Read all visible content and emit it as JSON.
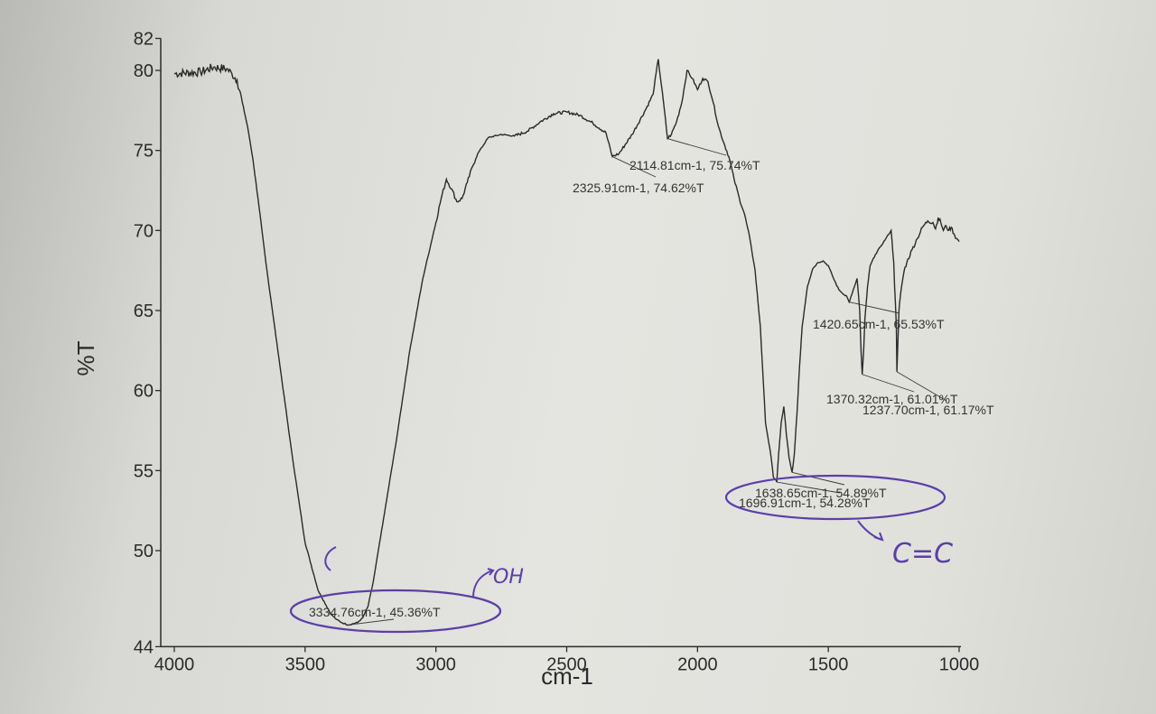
{
  "chart_data": {
    "type": "line",
    "xlabel": "cm-1",
    "ylabel": "%T",
    "xlim": [
      4000,
      1000
    ],
    "ylim": [
      44,
      82
    ],
    "x_ticks": [
      {
        "value": 4000,
        "label": "4000"
      },
      {
        "value": 3500,
        "label": "3500"
      },
      {
        "value": 3000,
        "label": "3000"
      },
      {
        "value": 2500,
        "label": "2500"
      },
      {
        "value": 2000,
        "label": "2000"
      },
      {
        "value": 1500,
        "label": "1500"
      },
      {
        "value": 1000,
        "label": "1000"
      }
    ],
    "y_ticks": [
      {
        "value": 44,
        "label": "44"
      },
      {
        "value": 50,
        "label": "50"
      },
      {
        "value": 55,
        "label": "55"
      },
      {
        "value": 60,
        "label": "60"
      },
      {
        "value": 65,
        "label": "65"
      },
      {
        "value": 70,
        "label": "70"
      },
      {
        "value": 75,
        "label": "75"
      },
      {
        "value": 80,
        "label": "80"
      },
      {
        "value": 82,
        "label": "82"
      }
    ],
    "series": [
      {
        "x": [
          4000,
          3900,
          3850,
          3800,
          3780,
          3760,
          3740,
          3720,
          3700,
          3680,
          3650,
          3600,
          3550,
          3500,
          3450,
          3400,
          3380,
          3360,
          3334.76,
          3300,
          3280,
          3260,
          3240,
          3200,
          3150,
          3100,
          3050,
          3000,
          2980,
          2960,
          2940,
          2920,
          2900,
          2880,
          2860,
          2840,
          2800,
          2750,
          2700,
          2650,
          2600,
          2550,
          2500,
          2450,
          2400,
          2350,
          2325.91,
          2300,
          2250,
          2200,
          2170,
          2150,
          2130,
          2114.81,
          2100,
          2080,
          2060,
          2040,
          2020,
          2000,
          1980,
          1960,
          1940,
          1920,
          1900,
          1880,
          1860,
          1840,
          1820,
          1800,
          1780,
          1760,
          1740,
          1720,
          1710,
          1700,
          1696.91,
          1690,
          1680,
          1670,
          1660,
          1650,
          1640,
          1638.65,
          1630,
          1620,
          1610,
          1600,
          1580,
          1560,
          1540,
          1520,
          1500,
          1480,
          1460,
          1440,
          1430,
          1420.65,
          1410,
          1400,
          1390,
          1380,
          1375,
          1370.32,
          1365,
          1360,
          1350,
          1340,
          1320,
          1300,
          1280,
          1260,
          1250,
          1240,
          1237.7,
          1234,
          1230,
          1220,
          1210,
          1200,
          1180,
          1160,
          1140,
          1120,
          1100,
          1090,
          1080,
          1070,
          1060,
          1050,
          1040,
          1030,
          1020,
          1010,
          1000
        ],
        "y": [
          79.8,
          79.9,
          80.2,
          80.1,
          79.8,
          79.4,
          78.0,
          76.5,
          74.5,
          72.0,
          68.0,
          62.0,
          56.0,
          50.5,
          47.5,
          46.0,
          45.7,
          45.5,
          45.36,
          45.5,
          45.8,
          46.5,
          48.0,
          52.0,
          57.0,
          62.5,
          67.0,
          70.5,
          72.0,
          73.2,
          72.6,
          71.8,
          72.0,
          73.0,
          74.0,
          74.8,
          75.8,
          76.0,
          75.9,
          76.2,
          76.8,
          77.3,
          77.4,
          77.2,
          76.7,
          76.1,
          74.62,
          74.8,
          76.0,
          77.5,
          78.5,
          80.7,
          78.0,
          75.74,
          76.0,
          76.8,
          78.0,
          80.0,
          79.5,
          78.8,
          79.5,
          79.3,
          78.0,
          76.5,
          75.5,
          74.6,
          73.2,
          72.0,
          71.0,
          69.5,
          67.5,
          64.0,
          58.0,
          56.0,
          54.6,
          54.4,
          54.28,
          56.0,
          58.0,
          59.0,
          57.2,
          55.8,
          55.0,
          54.89,
          56.0,
          58.5,
          61.5,
          64.0,
          66.5,
          67.6,
          68.0,
          68.1,
          67.8,
          67.0,
          66.3,
          66.0,
          65.9,
          65.53,
          66.0,
          66.5,
          67.0,
          65.0,
          62.5,
          61.01,
          62.5,
          64.5,
          66.5,
          67.8,
          68.5,
          69.0,
          69.5,
          70.0,
          68.0,
          64.0,
          61.17,
          63.0,
          65.0,
          66.5,
          67.5,
          68.0,
          68.8,
          69.5,
          70.2,
          70.6,
          70.5,
          70.1,
          70.8,
          70.5,
          70.0,
          70.3,
          70.0,
          70.2,
          69.8,
          69.5,
          69.3
        ]
      }
    ],
    "annotations": [
      {
        "label": "3334.76cm-1, 45.36%T",
        "x": 3334.76,
        "y": 45.36
      },
      {
        "label": "2325.91cm-1, 74.62%T",
        "x": 2325.91,
        "y": 74.62
      },
      {
        "label": "2114.81cm-1, 75.74%T",
        "x": 2114.81,
        "y": 75.74
      },
      {
        "label": "1696.91cm-1, 54.28%T",
        "x": 1696.91,
        "y": 54.28
      },
      {
        "label": "1638.65cm-1, 54.89%T",
        "x": 1638.65,
        "y": 54.89
      },
      {
        "label": "1420.65cm-1, 65.53%T",
        "x": 1420.65,
        "y": 65.53
      },
      {
        "label": "1370.32cm-1, 61.01%T",
        "x": 1370.32,
        "y": 61.01
      },
      {
        "label": "1237.70cm-1, 61.17%T",
        "x": 1237.7,
        "y": 61.17
      }
    ],
    "handwritten": [
      {
        "text": "OH",
        "color": "#5b3fa8"
      },
      {
        "text": "C=C",
        "color": "#5b3fa8"
      }
    ],
    "grid": false,
    "colors": {
      "line": "#2a2a2a",
      "ink": "#5b3fa8",
      "axis": "#2b2b2b"
    }
  }
}
